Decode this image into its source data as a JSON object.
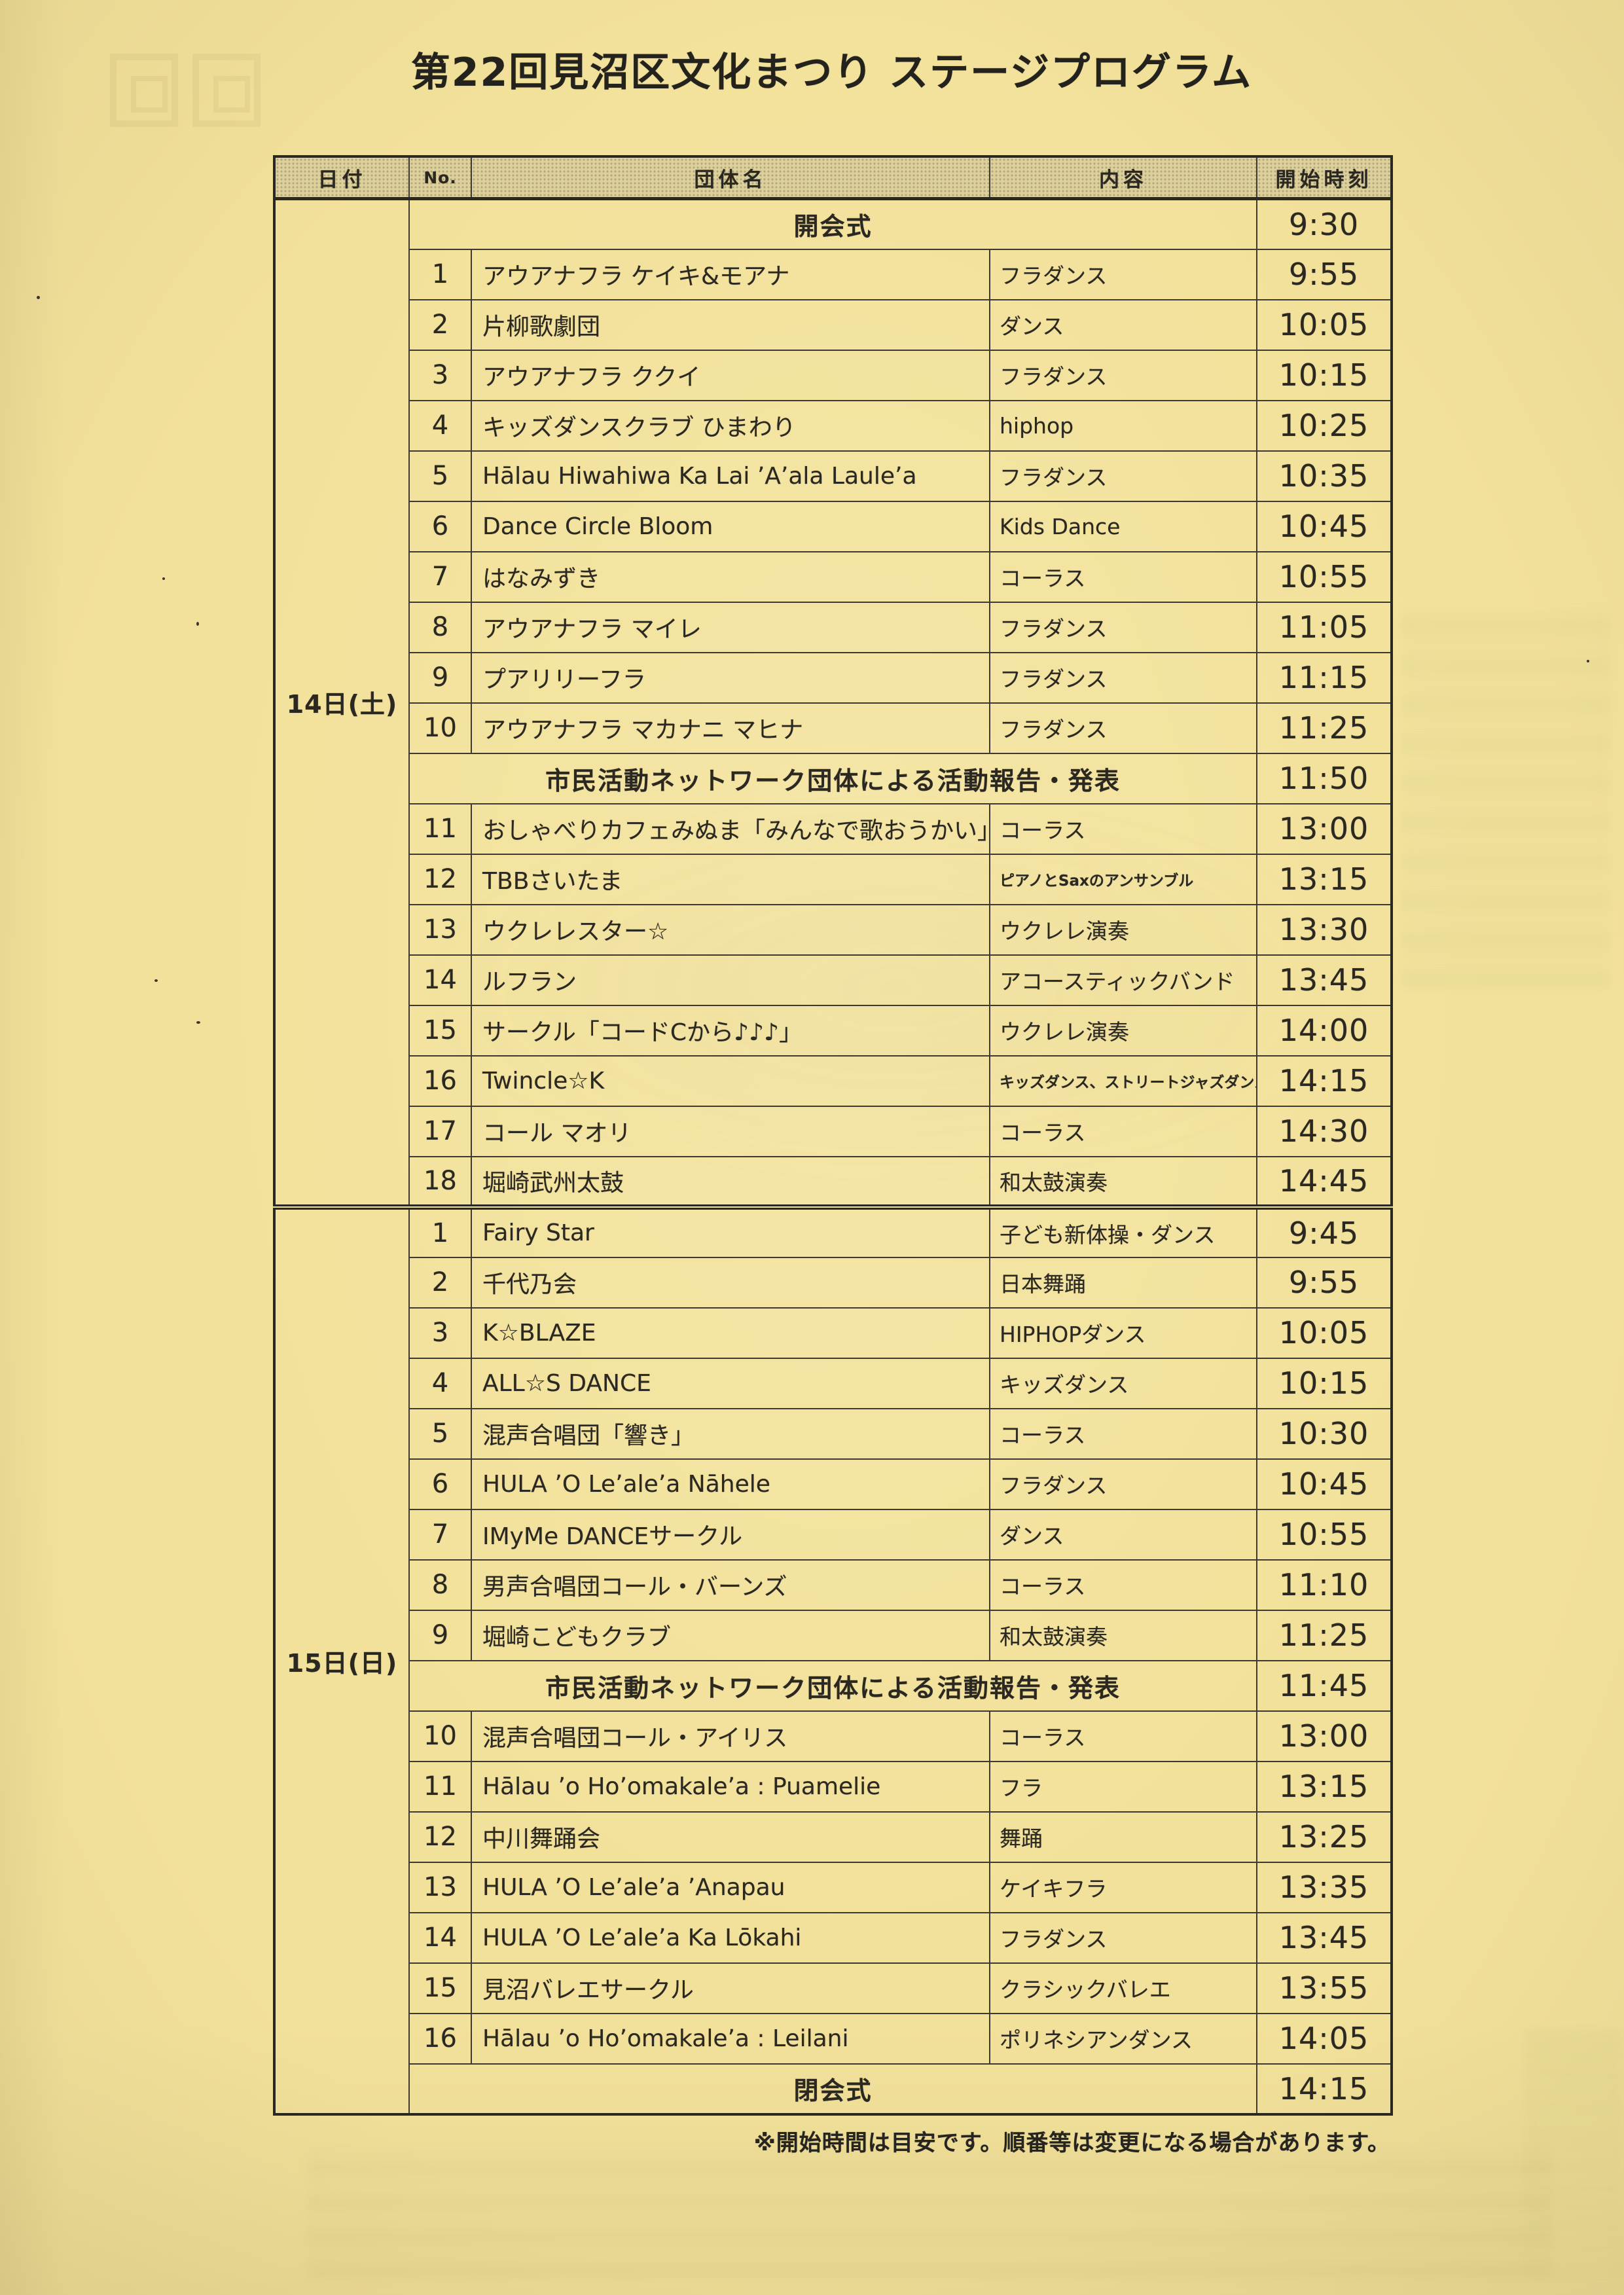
{
  "page": {
    "title": "第22回見沼区文化まつり ステージプログラム",
    "footer_note": "※開始時間は目安です。順番等は変更になる場合があります。"
  },
  "colors": {
    "paper": "#f2e19a",
    "ink": "#2b2821",
    "table_border": "#3e3a31",
    "header_fill": "#ddd09b"
  },
  "table": {
    "headers": {
      "date": "日付",
      "no": "No.",
      "group": "団体名",
      "content": "内容",
      "time": "開始時刻"
    },
    "days": [
      {
        "date_label": "14日(土)",
        "rows": [
          {
            "span": "開会式",
            "time": "9:30"
          },
          {
            "no": "1",
            "name": "アウアナフラ ケイキ&モアナ",
            "genre": "フラダンス",
            "time": "9:55"
          },
          {
            "no": "2",
            "name": "片柳歌劇団",
            "genre": "ダンス",
            "time": "10:05"
          },
          {
            "no": "3",
            "name": "アウアナフラ ククイ",
            "genre": "フラダンス",
            "time": "10:15"
          },
          {
            "no": "4",
            "name": "キッズダンスクラブ ひまわり",
            "genre": "hiphop",
            "time": "10:25"
          },
          {
            "no": "5",
            "name": "Hālau Hiwahiwa Ka Lai ’A’ala Laule’a",
            "genre": "フラダンス",
            "time": "10:35"
          },
          {
            "no": "6",
            "name": "Dance Circle Bloom",
            "genre": "Kids Dance",
            "time": "10:45"
          },
          {
            "no": "7",
            "name": "はなみずき",
            "genre": "コーラス",
            "time": "10:55"
          },
          {
            "no": "8",
            "name": "アウアナフラ マイレ",
            "genre": "フラダンス",
            "time": "11:05"
          },
          {
            "no": "9",
            "name": "プアリリーフラ",
            "genre": "フラダンス",
            "time": "11:15"
          },
          {
            "no": "10",
            "name": "アウアナフラ マカナニ マヒナ",
            "genre": "フラダンス",
            "time": "11:25"
          },
          {
            "span": "市民活動ネットワーク団体による活動報告・発表",
            "time": "11:50"
          },
          {
            "no": "11",
            "name": "おしゃべりカフェみぬま「みんなで歌おうかい」",
            "genre": "コーラス",
            "time": "13:00"
          },
          {
            "no": "12",
            "name": "TBBさいたま",
            "genre": "ピアノとSaxのアンサンブル",
            "time": "13:15"
          },
          {
            "no": "13",
            "name": "ウクレレスター☆",
            "genre": "ウクレレ演奏",
            "time": "13:30"
          },
          {
            "no": "14",
            "name": "ルフラン",
            "genre": "アコースティックバンド",
            "time": "13:45"
          },
          {
            "no": "15",
            "name": "サークル「コードCから♪♪♪」",
            "genre": "ウクレレ演奏",
            "time": "14:00"
          },
          {
            "no": "16",
            "name": "Twincle☆K",
            "genre": "キッズダンス、ストリートジャズダンス",
            "time": "14:15"
          },
          {
            "no": "17",
            "name": "コール マオリ",
            "genre": "コーラス",
            "time": "14:30"
          },
          {
            "no": "18",
            "name": "堀崎武州太鼓",
            "genre": "和太鼓演奏",
            "time": "14:45"
          }
        ]
      },
      {
        "date_label": "15日(日)",
        "rows": [
          {
            "no": "1",
            "name": "Fairy Star",
            "genre": "子ども新体操・ダンス",
            "time": "9:45"
          },
          {
            "no": "2",
            "name": "千代乃会",
            "genre": "日本舞踊",
            "time": "9:55"
          },
          {
            "no": "3",
            "name": "K☆BLAZE",
            "genre": "HIPHOPダンス",
            "time": "10:05"
          },
          {
            "no": "4",
            "name": "ALL☆S DANCE",
            "genre": "キッズダンス",
            "time": "10:15"
          },
          {
            "no": "5",
            "name": "混声合唱団「響き」",
            "genre": "コーラス",
            "time": "10:30"
          },
          {
            "no": "6",
            "name": "HULA ’O Le’ale’a Nāhele",
            "genre": "フラダンス",
            "time": "10:45"
          },
          {
            "no": "7",
            "name": "IMyMe DANCEサークル",
            "genre": "ダンス",
            "time": "10:55"
          },
          {
            "no": "8",
            "name": "男声合唱団コール・バーンズ",
            "genre": "コーラス",
            "time": "11:10"
          },
          {
            "no": "9",
            "name": "堀崎こどもクラブ",
            "genre": "和太鼓演奏",
            "time": "11:25"
          },
          {
            "span": "市民活動ネットワーク団体による活動報告・発表",
            "time": "11:45"
          },
          {
            "no": "10",
            "name": "混声合唱団コール・アイリス",
            "genre": "コーラス",
            "time": "13:00"
          },
          {
            "no": "11",
            "name": "Hālau ’o Ho’omakale’a : Puamelie",
            "genre": "フラ",
            "time": "13:15"
          },
          {
            "no": "12",
            "name": "中川舞踊会",
            "genre": "舞踊",
            "time": "13:25"
          },
          {
            "no": "13",
            "name": "HULA ’O Le’ale’a ’Anapau",
            "genre": "ケイキフラ",
            "time": "13:35"
          },
          {
            "no": "14",
            "name": "HULA ’O Le’ale’a Ka Lōkahi",
            "genre": "フラダンス",
            "time": "13:45"
          },
          {
            "no": "15",
            "name": "見沼バレエサークル",
            "genre": "クラシックバレエ",
            "time": "13:55"
          },
          {
            "no": "16",
            "name": "Hālau ’o Ho’omakale’a : Leilani",
            "genre": "ポリネシアンダンス",
            "time": "14:05"
          },
          {
            "span": "閉会式",
            "time": "14:15"
          }
        ]
      }
    ]
  }
}
